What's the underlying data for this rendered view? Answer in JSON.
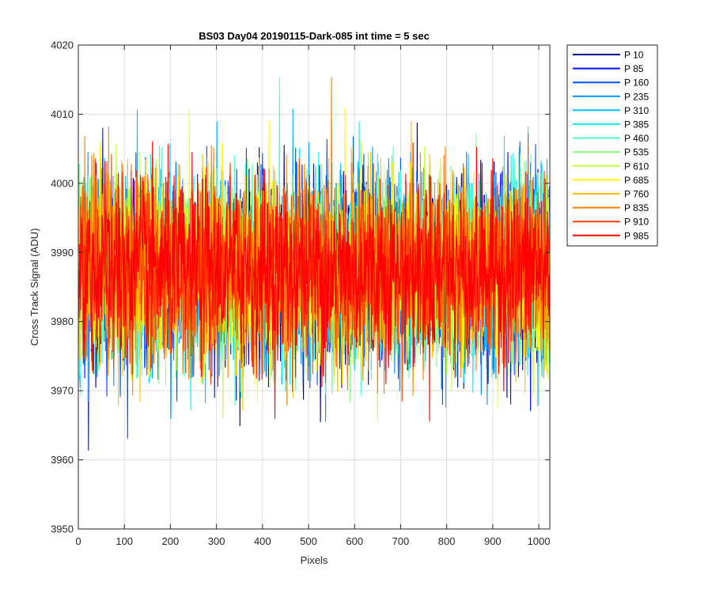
{
  "chart_data": {
    "type": "line",
    "title": "BS03 Day04 20190115-Dark-085 int time = 5 sec",
    "xlabel": "Pixels",
    "ylabel": "Cross Track Signal (ADU)",
    "xlim": [
      0,
      1024
    ],
    "ylim": [
      3950,
      4020
    ],
    "xticks": [
      0,
      100,
      200,
      300,
      400,
      500,
      600,
      700,
      800,
      900,
      1000
    ],
    "yticks": [
      3950,
      3960,
      3970,
      3980,
      3990,
      4000,
      4010,
      4020
    ],
    "grid": true,
    "legend_position": "outside-top-right",
    "noise_model": {
      "mean": 3987.5,
      "std": 6.5,
      "points_per_series": 1024
    },
    "series": [
      {
        "name": "P 10",
        "color": "#00008f"
      },
      {
        "name": "P 85",
        "color": "#0010ff"
      },
      {
        "name": "P 160",
        "color": "#0050ff"
      },
      {
        "name": "P 235",
        "color": "#0090ff"
      },
      {
        "name": "P 310",
        "color": "#00c0ff"
      },
      {
        "name": "P 385",
        "color": "#10f0ef"
      },
      {
        "name": "P 460",
        "color": "#50ffbf"
      },
      {
        "name": "P 535",
        "color": "#80ff80"
      },
      {
        "name": "P 610",
        "color": "#bfff40"
      },
      {
        "name": "P 685",
        "color": "#ffff00"
      },
      {
        "name": "P 760",
        "color": "#ffc000"
      },
      {
        "name": "P 835",
        "color": "#ff8000"
      },
      {
        "name": "P 910",
        "color": "#ff4000"
      },
      {
        "name": "P 985",
        "color": "#ff0000"
      }
    ]
  }
}
